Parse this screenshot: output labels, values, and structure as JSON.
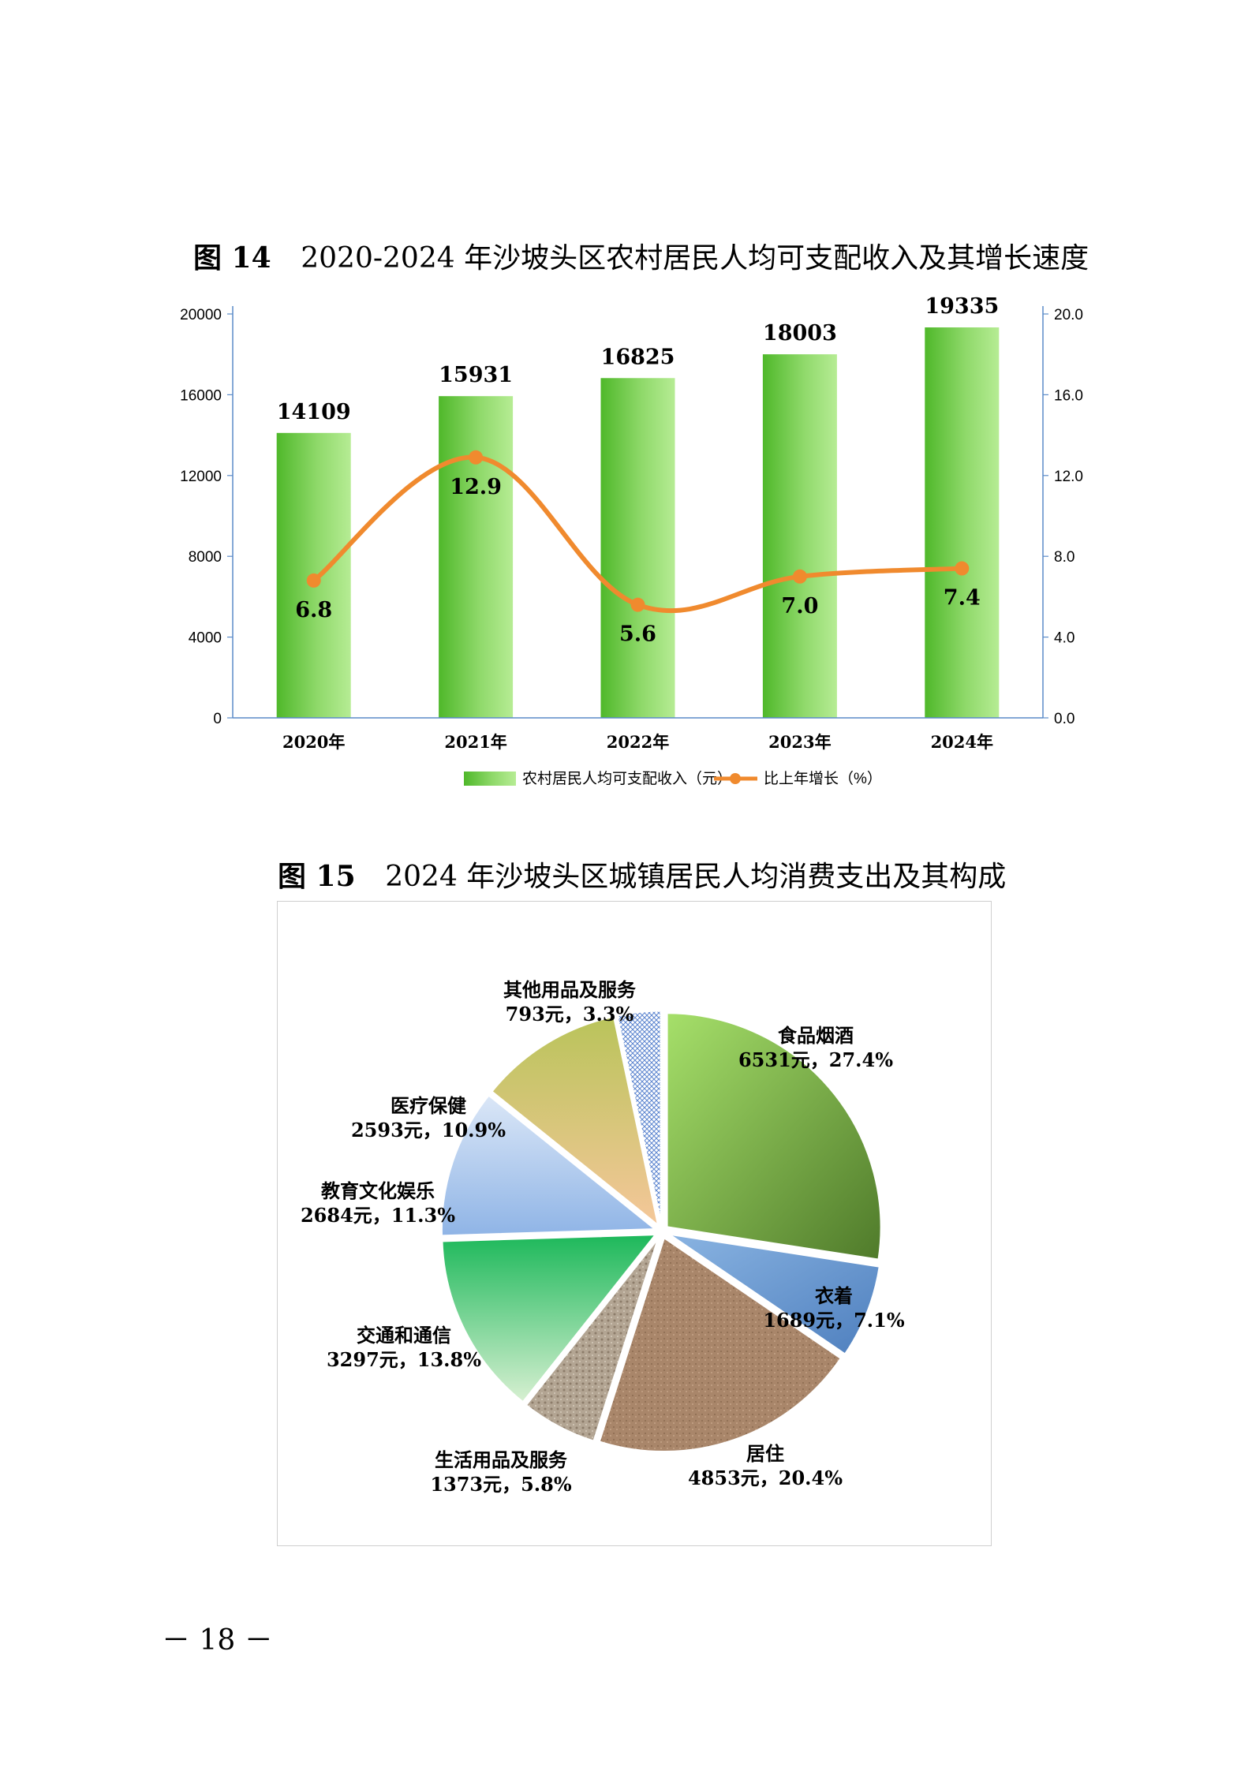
{
  "figure14": {
    "label": "图 14",
    "title": "2020-2024 年沙坡头区农村居民人均可支配收入及其增长速度"
  },
  "figure15": {
    "label": "图 15",
    "title": "2024 年沙坡头区城镇居民人均消费支出及其构成"
  },
  "page_number": "－ 18 －",
  "colors": {
    "bar_light": "#b6ec94",
    "bar_dark": "#4fb82a",
    "line": "#f08a2e",
    "axis": "#5b8bc9"
  },
  "chart_data": [
    {
      "type": "bar",
      "categories": [
        "2020年",
        "2021年",
        "2022年",
        "2023年",
        "2024年"
      ],
      "series": [
        {
          "name": "农村居民人均可支配收入（元）",
          "type": "bar",
          "axis": "left",
          "values": [
            14109,
            15931,
            16825,
            18003,
            19335
          ],
          "labels": [
            "14109",
            "15931",
            "16825",
            "18003",
            "19335"
          ]
        },
        {
          "name": "比上年增长（%）",
          "type": "line",
          "axis": "right",
          "values": [
            6.8,
            12.9,
            5.6,
            7.0,
            7.4
          ],
          "labels": [
            "6.8",
            "12.9",
            "5.6",
            "7.0",
            "7.4"
          ]
        }
      ],
      "y_left": {
        "ylim": [
          0,
          20000
        ],
        "ticks": [
          "0",
          "4000",
          "8000",
          "12000",
          "16000",
          "20000"
        ]
      },
      "y_right": {
        "ylim": [
          0,
          20
        ],
        "ticks": [
          "0.0",
          "4.0",
          "8.0",
          "12.0",
          "16.0",
          "20.0"
        ]
      },
      "legend": "bottom",
      "grid": false
    },
    {
      "type": "pie",
      "slices": [
        {
          "name": "食品烟酒",
          "value": 6531,
          "label": "6531元，27.4%",
          "color": "#7fb64a"
        },
        {
          "name": "衣着",
          "value": 1689,
          "label": "1689元，7.1%",
          "color": "#5b8dc8"
        },
        {
          "name": "居住",
          "value": 4853,
          "label": "4853元，20.4%",
          "color": "#a9856a"
        },
        {
          "name": "生活用品及服务",
          "value": 1373,
          "label": "1373元，5.8%",
          "color": "#a99a8a"
        },
        {
          "name": "交通和通信",
          "value": 3297,
          "label": "3297元，13.8%",
          "color": "#45c47a"
        },
        {
          "name": "教育文化娱乐",
          "value": 2684,
          "label": "2684元，11.3%",
          "color": "#a8c4ea"
        },
        {
          "name": "医疗保健",
          "value": 2593,
          "label": "2593元，10.9%",
          "color": "#dcc57e"
        },
        {
          "name": "其他用品及服务",
          "value": 793,
          "label": "793元，3.3%",
          "color": "#6b8fd0"
        }
      ]
    }
  ]
}
